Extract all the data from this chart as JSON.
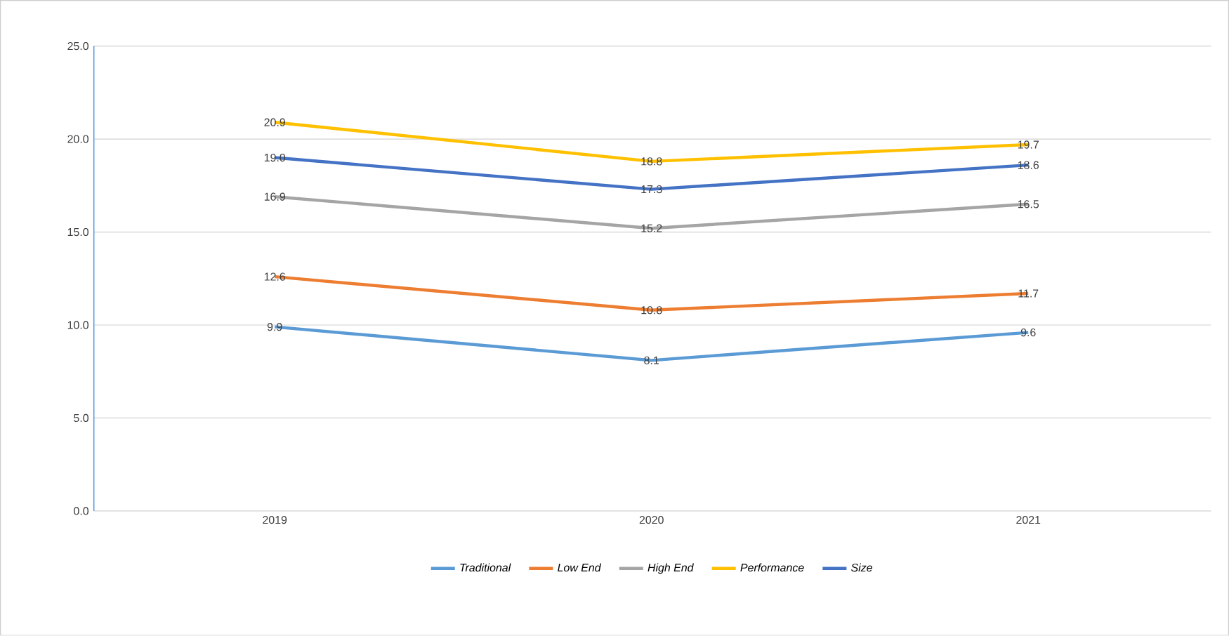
{
  "chart_data": {
    "type": "line",
    "categories": [
      "2019",
      "2020",
      "2021"
    ],
    "series": [
      {
        "name": "Traditional",
        "color": "#5b9bd5",
        "values": [
          9.9,
          8.1,
          9.6
        ],
        "value_labels": [
          "9.9",
          "8.1",
          "9.6"
        ]
      },
      {
        "name": "Low End",
        "color": "#ed7d31",
        "values": [
          12.6,
          10.8,
          11.7
        ],
        "value_labels": [
          "12.6",
          "10.8",
          "11.7"
        ]
      },
      {
        "name": "High End",
        "color": "#a5a5a5",
        "values": [
          16.9,
          15.2,
          16.5
        ],
        "value_labels": [
          "16.9",
          "15.2",
          "16.5"
        ]
      },
      {
        "name": "Performance",
        "color": "#ffc000",
        "values": [
          20.9,
          18.8,
          19.7
        ],
        "value_labels": [
          "20.9",
          "18.8",
          "19.7"
        ]
      },
      {
        "name": "Size",
        "color": "#4472c4",
        "values": [
          19.0,
          17.3,
          18.6
        ],
        "value_labels": [
          "19.0",
          "17.3",
          "18.6"
        ]
      }
    ],
    "ylim": [
      0,
      25
    ],
    "yticks": [
      {
        "value": 0,
        "label": "0.0"
      },
      {
        "value": 5,
        "label": "5.0"
      },
      {
        "value": 10,
        "label": "10.0"
      },
      {
        "value": 15,
        "label": "15.0"
      },
      {
        "value": 20,
        "label": "20.0"
      },
      {
        "value": 25,
        "label": "25.0"
      }
    ],
    "grid": "y",
    "legend": "bottom",
    "marker": "none",
    "line_style": "solid"
  }
}
